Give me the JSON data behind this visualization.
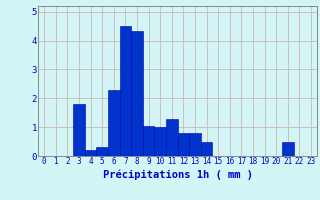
{
  "categories": [
    0,
    1,
    2,
    3,
    4,
    5,
    6,
    7,
    8,
    9,
    10,
    11,
    12,
    13,
    14,
    15,
    16,
    17,
    18,
    19,
    20,
    21,
    22,
    23
  ],
  "values": [
    0,
    0,
    0,
    1.8,
    0.2,
    0.3,
    2.3,
    4.5,
    4.35,
    1.05,
    1.0,
    1.3,
    0.8,
    0.8,
    0.5,
    0,
    0,
    0,
    0,
    0,
    0,
    0.5,
    0,
    0
  ],
  "bar_color": "#0033cc",
  "bar_edge_color": "#0000aa",
  "background_color": "#d4f5f5",
  "grid_color": "#c8b8b8",
  "xlabel": "Précipitations 1h ( mm )",
  "xlabel_color": "#0000cc",
  "tick_color": "#0000cc",
  "axis_color": "#888888",
  "ylim": [
    0,
    5.2
  ],
  "yticks": [
    0,
    1,
    2,
    3,
    4,
    5
  ],
  "xlabel_fontsize": 7.5,
  "tick_fontsize": 5.5
}
